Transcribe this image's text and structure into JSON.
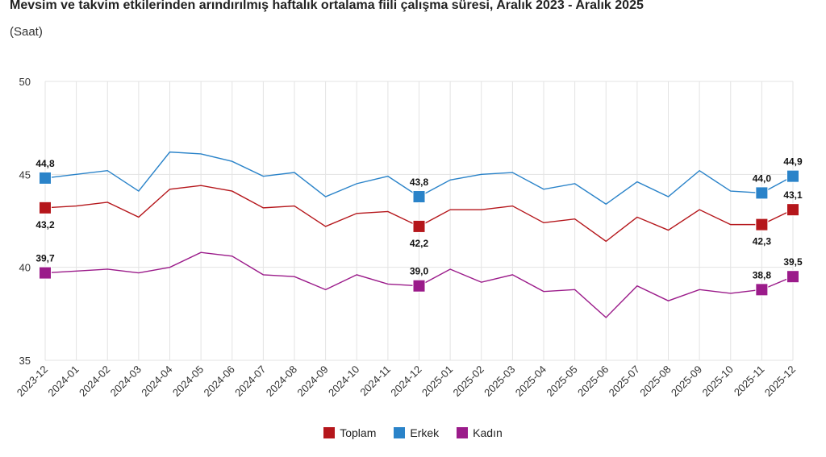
{
  "chart_data": {
    "type": "line",
    "title": "Mevsim ve takvim etkilerinden arındırılmış haftalık ortalama fiili çalışma süresi, Aralık 2023 - Aralık 2025",
    "subtitle": "(Saat)",
    "xlabel": "",
    "ylabel": "",
    "ylim": [
      35,
      50
    ],
    "yticks": [
      "35",
      "40",
      "45",
      "50"
    ],
    "grid": true,
    "legend_position": "bottom",
    "categories": [
      "2023-12",
      "2024-01",
      "2024-02",
      "2024-03",
      "2024-04",
      "2024-05",
      "2024-06",
      "2024-07",
      "2024-08",
      "2024-09",
      "2024-10",
      "2024-11",
      "2024-12",
      "2025-01",
      "2025-02",
      "2025-03",
      "2025-04",
      "2025-05",
      "2025-06",
      "2025-07",
      "2025-08",
      "2025-09",
      "2025-10",
      "2025-11",
      "2025-12"
    ],
    "series": [
      {
        "name": "Toplam",
        "color": "#b5161b",
        "values": [
          43.2,
          43.3,
          43.5,
          42.7,
          44.2,
          44.4,
          44.1,
          43.2,
          43.3,
          42.2,
          42.9,
          43.0,
          42.2,
          43.1,
          43.1,
          43.3,
          42.4,
          42.6,
          41.4,
          42.7,
          42.0,
          43.1,
          42.3,
          42.3,
          43.1
        ],
        "labeled_points": [
          {
            "index": 0,
            "label": "43,2",
            "pos": "below"
          },
          {
            "index": 12,
            "label": "42,2",
            "pos": "below"
          },
          {
            "index": 23,
            "label": "42,3",
            "pos": "below"
          },
          {
            "index": 24,
            "label": "43,1",
            "pos": "above"
          }
        ]
      },
      {
        "name": "Erkek",
        "color": "#2a83c9",
        "values": [
          44.8,
          45.0,
          45.2,
          44.1,
          46.2,
          46.1,
          45.7,
          44.9,
          45.1,
          43.8,
          44.5,
          44.9,
          43.8,
          44.7,
          45.0,
          45.1,
          44.2,
          44.5,
          43.4,
          44.6,
          43.8,
          45.2,
          44.1,
          44.0,
          44.9
        ],
        "labeled_points": [
          {
            "index": 0,
            "label": "44,8",
            "pos": "above"
          },
          {
            "index": 12,
            "label": "43,8",
            "pos": "above"
          },
          {
            "index": 23,
            "label": "44,0",
            "pos": "above"
          },
          {
            "index": 24,
            "label": "44,9",
            "pos": "above"
          }
        ]
      },
      {
        "name": "Kadın",
        "color": "#9b1b8a",
        "values": [
          39.7,
          39.8,
          39.9,
          39.7,
          40.0,
          40.8,
          40.6,
          39.6,
          39.5,
          38.8,
          39.6,
          39.1,
          39.0,
          39.9,
          39.2,
          39.6,
          38.7,
          38.8,
          37.3,
          39.0,
          38.2,
          38.8,
          38.6,
          38.8,
          39.5
        ],
        "labeled_points": [
          {
            "index": 0,
            "label": "39,7",
            "pos": "above"
          },
          {
            "index": 12,
            "label": "39,0",
            "pos": "above"
          },
          {
            "index": 23,
            "label": "38,8",
            "pos": "above"
          },
          {
            "index": 24,
            "label": "39,5",
            "pos": "above"
          }
        ]
      }
    ]
  }
}
